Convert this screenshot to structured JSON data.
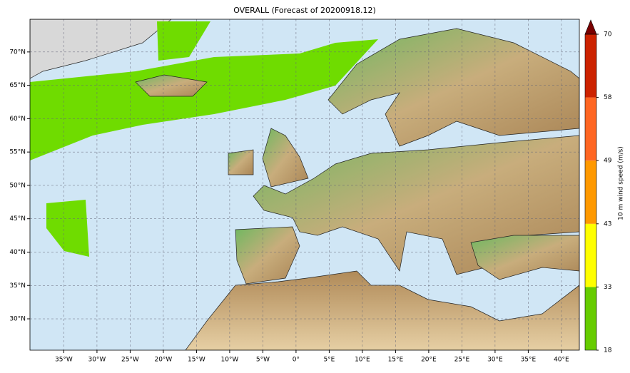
{
  "chart_data": {
    "type": "map",
    "title": "OVERALL (Forecast of 20200918.12)",
    "xlim": [
      -40.1,
      42.7
    ],
    "ylim": [
      25.3,
      74.9
    ],
    "xticks": [
      {
        "value": -35,
        "label": "35°W"
      },
      {
        "value": -30,
        "label": "30°W"
      },
      {
        "value": -25,
        "label": "25°W"
      },
      {
        "value": -20,
        "label": "20°W"
      },
      {
        "value": -15,
        "label": "15°W"
      },
      {
        "value": -10,
        "label": "10°W"
      },
      {
        "value": -5,
        "label": "5°W"
      },
      {
        "value": 0,
        "label": "0°"
      },
      {
        "value": 5,
        "label": "5°E"
      },
      {
        "value": 10,
        "label": "10°E"
      },
      {
        "value": 15,
        "label": "15°E"
      },
      {
        "value": 20,
        "label": "20°E"
      },
      {
        "value": 25,
        "label": "25°E"
      },
      {
        "value": 30,
        "label": "30°E"
      },
      {
        "value": 35,
        "label": "35°E"
      },
      {
        "value": 40,
        "label": "40°E"
      }
    ],
    "yticks": [
      {
        "value": 30,
        "label": "30°N"
      },
      {
        "value": 35,
        "label": "35°N"
      },
      {
        "value": 40,
        "label": "40°N"
      },
      {
        "value": 45,
        "label": "45°N"
      },
      {
        "value": 50,
        "label": "50°N"
      },
      {
        "value": 55,
        "label": "55°N"
      },
      {
        "value": 60,
        "label": "60°N"
      },
      {
        "value": 65,
        "label": "65°N"
      },
      {
        "value": 70,
        "label": "70°N"
      }
    ],
    "grid": true,
    "colorbar": {
      "label": "10 m wind speed (m/s)",
      "ticks": [
        18,
        33,
        43,
        49,
        58,
        70
      ],
      "colors": [
        "#66cc00",
        "#ffff00",
        "#ff9900",
        "#ff6622",
        "#cc2200"
      ],
      "extend_color": "#7a0000"
    }
  }
}
